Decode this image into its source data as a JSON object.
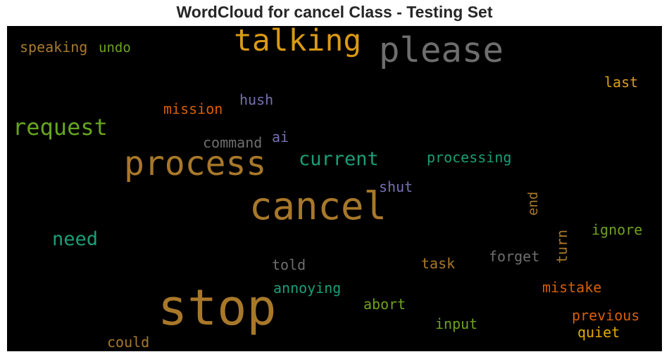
{
  "title": "WordCloud for cancel Class - Testing Set",
  "words": [
    {
      "text": "talking",
      "color": "#d99a14"
    },
    {
      "text": "please",
      "color": "#6e6e6e"
    },
    {
      "text": "speaking",
      "color": "#a87a2f"
    },
    {
      "text": "undo",
      "color": "#6ea11f"
    },
    {
      "text": "last",
      "color": "#d9a217"
    },
    {
      "text": "hush",
      "color": "#7570b3"
    },
    {
      "text": "mission",
      "color": "#d95f02"
    },
    {
      "text": "request",
      "color": "#66a61e"
    },
    {
      "text": "command",
      "color": "#6e6e6e"
    },
    {
      "text": "ai",
      "color": "#7570b3"
    },
    {
      "text": "process",
      "color": "#a8782a"
    },
    {
      "text": "current",
      "color": "#1b9e77"
    },
    {
      "text": "processing",
      "color": "#1b9e77"
    },
    {
      "text": "shut",
      "color": "#7570b3"
    },
    {
      "text": "cancel",
      "color": "#a8782a"
    },
    {
      "text": "need",
      "color": "#1b9e77"
    },
    {
      "text": "end",
      "color": "#a8782a"
    },
    {
      "text": "turn",
      "color": "#a8782a"
    },
    {
      "text": "ignore",
      "color": "#6ea11f"
    },
    {
      "text": "told",
      "color": "#6e6e6e"
    },
    {
      "text": "forget",
      "color": "#6e6e6e"
    },
    {
      "text": "task",
      "color": "#a8782a"
    },
    {
      "text": "annoying",
      "color": "#1b9e77"
    },
    {
      "text": "mistake",
      "color": "#d95f02"
    },
    {
      "text": "stop",
      "color": "#a8782a"
    },
    {
      "text": "abort",
      "color": "#6ea11f"
    },
    {
      "text": "previous",
      "color": "#d95f02"
    },
    {
      "text": "input",
      "color": "#6ea11f"
    },
    {
      "text": "quiet",
      "color": "#e6ab02"
    },
    {
      "text": "could",
      "color": "#a8782a"
    }
  ]
}
